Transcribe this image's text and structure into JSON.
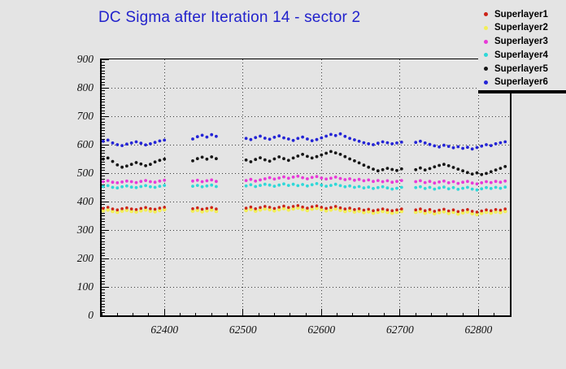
{
  "colors": {
    "canvas_bg": "#e4e4e4",
    "axis": "#000000",
    "grid": "#3a3a3a",
    "title": "#2222cc"
  },
  "chart_data": {
    "type": "scatter",
    "title": "DC Sigma after Iteration 14 - sector 2",
    "xlabel": "",
    "ylabel": "",
    "xlim": [
      62320,
      62840
    ],
    "ylim": [
      0,
      900
    ],
    "x_major_ticks": [
      62400,
      62500,
      62600,
      62700,
      62800
    ],
    "x_tick_labels": [
      "62400",
      "62500",
      "62600",
      "62700",
      "62800"
    ],
    "x_minor_step": 20,
    "y_major_ticks": [
      0,
      100,
      200,
      300,
      400,
      500,
      600,
      700,
      800,
      900
    ],
    "y_tick_labels": [
      "0",
      "100",
      "200",
      "300",
      "400",
      "500",
      "600",
      "700",
      "800",
      "900"
    ],
    "y_minor_step": 10,
    "grid": true,
    "legend_position": "top-right",
    "draw_order": [
      1,
      3,
      2,
      0,
      4,
      5
    ],
    "x": [
      62322,
      62328,
      62334,
      62340,
      62346,
      62352,
      62358,
      62364,
      62370,
      62376,
      62382,
      62388,
      62394,
      62400,
      62436,
      62442,
      62448,
      62454,
      62460,
      62466,
      62504,
      62510,
      62516,
      62522,
      62528,
      62534,
      62540,
      62546,
      62552,
      62558,
      62564,
      62570,
      62576,
      62582,
      62588,
      62594,
      62600,
      62606,
      62612,
      62618,
      62624,
      62630,
      62636,
      62642,
      62648,
      62654,
      62660,
      62666,
      62672,
      62678,
      62684,
      62690,
      62696,
      62702,
      62720,
      62726,
      62732,
      62738,
      62744,
      62750,
      62756,
      62762,
      62768,
      62774,
      62780,
      62786,
      62792,
      62798,
      62804,
      62810,
      62816,
      62822,
      62828,
      62834
    ],
    "series": [
      {
        "name": "Superlayer1",
        "color": "#cc2418",
        "marker_r": 1.8,
        "values": [
          376,
          380,
          374,
          371,
          375,
          378,
          374,
          372,
          376,
          379,
          375,
          373,
          377,
          380,
          375,
          378,
          373,
          376,
          379,
          374,
          377,
          381,
          375,
          379,
          383,
          380,
          376,
          380,
          384,
          379,
          383,
          386,
          381,
          377,
          382,
          385,
          380,
          376,
          379,
          383,
          378,
          374,
          377,
          372,
          375,
          370,
          373,
          368,
          371,
          374,
          371,
          368,
          371,
          374,
          371,
          374,
          368,
          372,
          366,
          370,
          373,
          367,
          371,
          365,
          369,
          372,
          366,
          363,
          367,
          371,
          368,
          372,
          370,
          374
        ]
      },
      {
        "name": "Superlayer2",
        "color": "#f2ee58",
        "marker_r": 2.4,
        "values": [
          368,
          371,
          366,
          363,
          367,
          370,
          366,
          364,
          368,
          371,
          367,
          365,
          369,
          372,
          367,
          370,
          365,
          368,
          371,
          366,
          369,
          373,
          367,
          371,
          375,
          372,
          368,
          372,
          376,
          371,
          375,
          378,
          373,
          369,
          374,
          377,
          372,
          368,
          371,
          375,
          370,
          366,
          369,
          364,
          367,
          362,
          365,
          360,
          363,
          366,
          363,
          360,
          363,
          366,
          363,
          366,
          360,
          364,
          358,
          362,
          365,
          359,
          363,
          357,
          361,
          364,
          358,
          355,
          359,
          363,
          360,
          364,
          362,
          366
        ]
      },
      {
        "name": "Superlayer3",
        "color": "#e83ad8",
        "marker_r": 1.9,
        "values": [
          470,
          473,
          468,
          466,
          469,
          472,
          470,
          467,
          471,
          474,
          470,
          468,
          472,
          475,
          472,
          475,
          470,
          473,
          476,
          471,
          474,
          478,
          472,
          476,
          480,
          484,
          479,
          483,
          487,
          482,
          486,
          489,
          484,
          480,
          485,
          488,
          483,
          479,
          482,
          486,
          481,
          477,
          480,
          475,
          478,
          473,
          476,
          471,
          474,
          470,
          473,
          468,
          471,
          474,
          470,
          473,
          467,
          471,
          465,
          469,
          472,
          466,
          470,
          464,
          468,
          471,
          465,
          462,
          466,
          470,
          467,
          471,
          468,
          472
        ]
      },
      {
        "name": "Superlayer4",
        "color": "#2fd8d8",
        "marker_r": 1.9,
        "values": [
          453,
          456,
          450,
          448,
          452,
          455,
          451,
          449,
          453,
          456,
          452,
          450,
          454,
          457,
          454,
          457,
          452,
          455,
          458,
          453,
          455,
          459,
          453,
          457,
          461,
          458,
          454,
          458,
          462,
          457,
          461,
          456,
          460,
          455,
          459,
          463,
          458,
          454,
          457,
          461,
          456,
          452,
          455,
          450,
          453,
          448,
          451,
          446,
          449,
          452,
          448,
          444,
          447,
          450,
          449,
          452,
          446,
          450,
          444,
          448,
          451,
          445,
          449,
          443,
          447,
          450,
          444,
          441,
          445,
          449,
          446,
          450,
          447,
          451
        ]
      },
      {
        "name": "Superlayer5",
        "color": "#161616",
        "marker_r": 1.9,
        "values": [
          549,
          553,
          541,
          529,
          521,
          525,
          531,
          537,
          532,
          526,
          531,
          539,
          545,
          549,
          543,
          551,
          556,
          549,
          557,
          551,
          546,
          540,
          548,
          554,
          547,
          542,
          550,
          557,
          551,
          545,
          553,
          560,
          566,
          559,
          553,
          558,
          564,
          570,
          576,
          571,
          566,
          558,
          550,
          543,
          536,
          528,
          521,
          514,
          508,
          512,
          517,
          513,
          509,
          515,
          512,
          518,
          511,
          516,
          522,
          527,
          531,
          526,
          520,
          514,
          508,
          502,
          497,
          501,
          495,
          499,
          505,
          511,
          517,
          523
        ]
      },
      {
        "name": "Superlayer6",
        "color": "#2424d6",
        "marker_r": 1.9,
        "values": [
          612,
          616,
          606,
          600,
          597,
          602,
          606,
          610,
          605,
          599,
          603,
          608,
          613,
          616,
          620,
          628,
          633,
          627,
          635,
          629,
          622,
          618,
          625,
          630,
          623,
          619,
          626,
          631,
          624,
          620,
          615,
          622,
          627,
          620,
          614,
          618,
          624,
          630,
          636,
          632,
          638,
          629,
          622,
          617,
          612,
          607,
          603,
          600,
          605,
          610,
          607,
          603,
          606,
          609,
          608,
          612,
          606,
          601,
          596,
          592,
          598,
          594,
          589,
          593,
          587,
          591,
          585,
          590,
          595,
          600,
          597,
          603,
          607,
          610
        ]
      }
    ]
  }
}
